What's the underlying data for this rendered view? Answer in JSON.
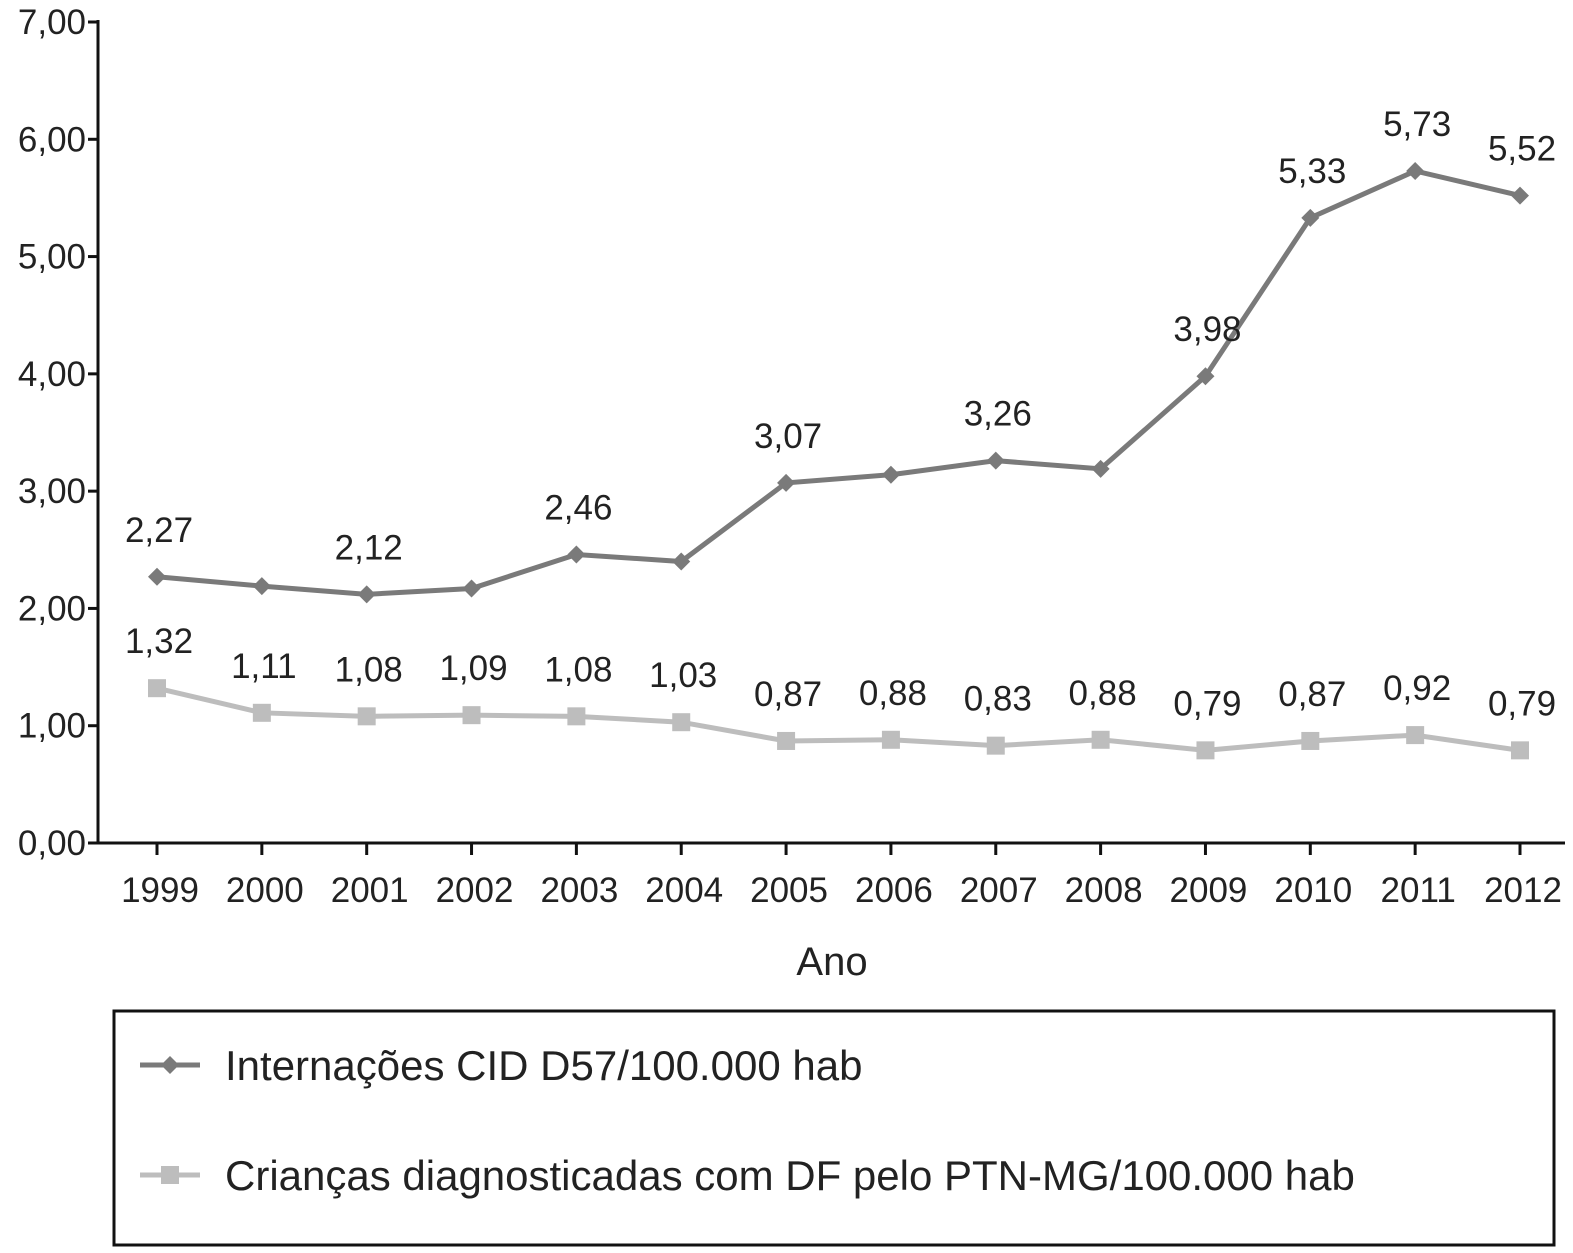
{
  "chart_data": {
    "type": "line",
    "title": "",
    "xlabel": "Ano",
    "ylabel": "",
    "ylim": [
      0,
      7
    ],
    "y_ticks": [
      "0,00",
      "1,00",
      "2,00",
      "3,00",
      "4,00",
      "5,00",
      "6,00",
      "7,00"
    ],
    "categories": [
      "1999",
      "2000",
      "2001",
      "2002",
      "2003",
      "2004",
      "2005",
      "2006",
      "2007",
      "2008",
      "2009",
      "2010",
      "2011",
      "2012"
    ],
    "series": [
      {
        "name": "Internações CID D57/100.000 hab",
        "color": "#7a7a7a",
        "marker": "diamond",
        "values": [
          2.27,
          2.19,
          2.12,
          2.17,
          2.46,
          2.4,
          3.07,
          3.14,
          3.26,
          3.19,
          3.98,
          5.33,
          5.73,
          5.52
        ],
        "labels": [
          "2,27",
          null,
          "2,12",
          null,
          "2,46",
          null,
          "3,07",
          null,
          "3,26",
          null,
          "3,98",
          "5,33",
          "5,73",
          "5,52"
        ]
      },
      {
        "name": "Crianças diagnosticadas com DF pelo PTN-MG/100.000 hab",
        "color": "#bdbdbd",
        "marker": "square",
        "values": [
          1.32,
          1.11,
          1.08,
          1.09,
          1.08,
          1.03,
          0.87,
          0.88,
          0.83,
          0.88,
          0.79,
          0.87,
          0.92,
          0.79
        ],
        "labels": [
          "1,32",
          "1,11",
          "1,08",
          "1,09",
          "1,08",
          "1,03",
          "0,87",
          "0,88",
          "0,83",
          "0,88",
          "0,79",
          "0,87",
          "0,92",
          "0,79"
        ]
      }
    ],
    "grid": false,
    "legend": "bottom"
  }
}
